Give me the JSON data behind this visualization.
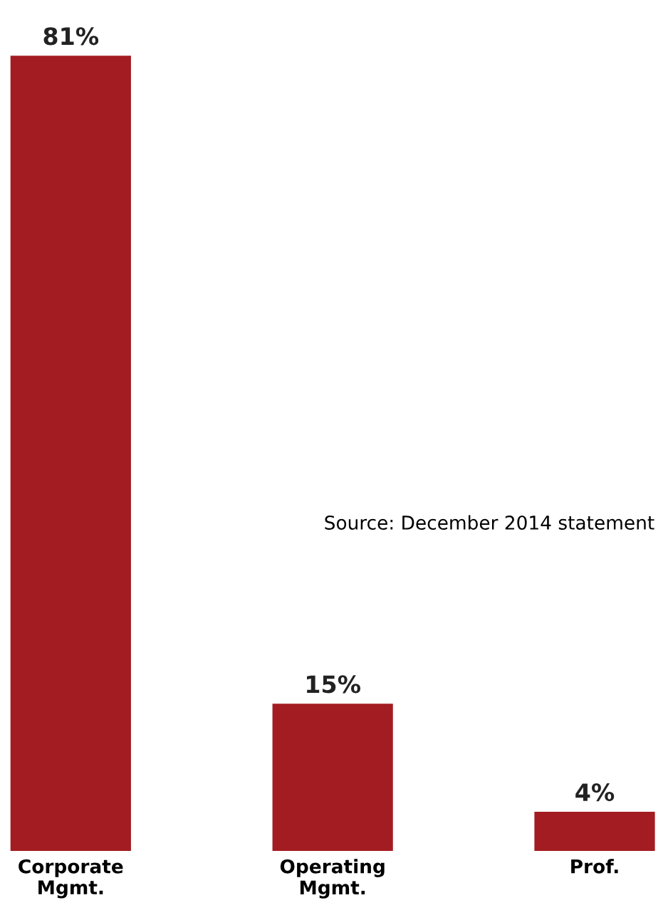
{
  "chart_data": {
    "type": "bar",
    "categories": [
      "Corporate\nMgmt.",
      "Operating\nMgmt.",
      "Prof."
    ],
    "values": [
      81,
      15,
      4
    ],
    "value_labels": [
      "81%",
      "15%",
      "4%"
    ],
    "color": "#a31c22",
    "grid": false,
    "legend": false,
    "annotations": [
      "Source: December 2014 statement"
    ]
  }
}
